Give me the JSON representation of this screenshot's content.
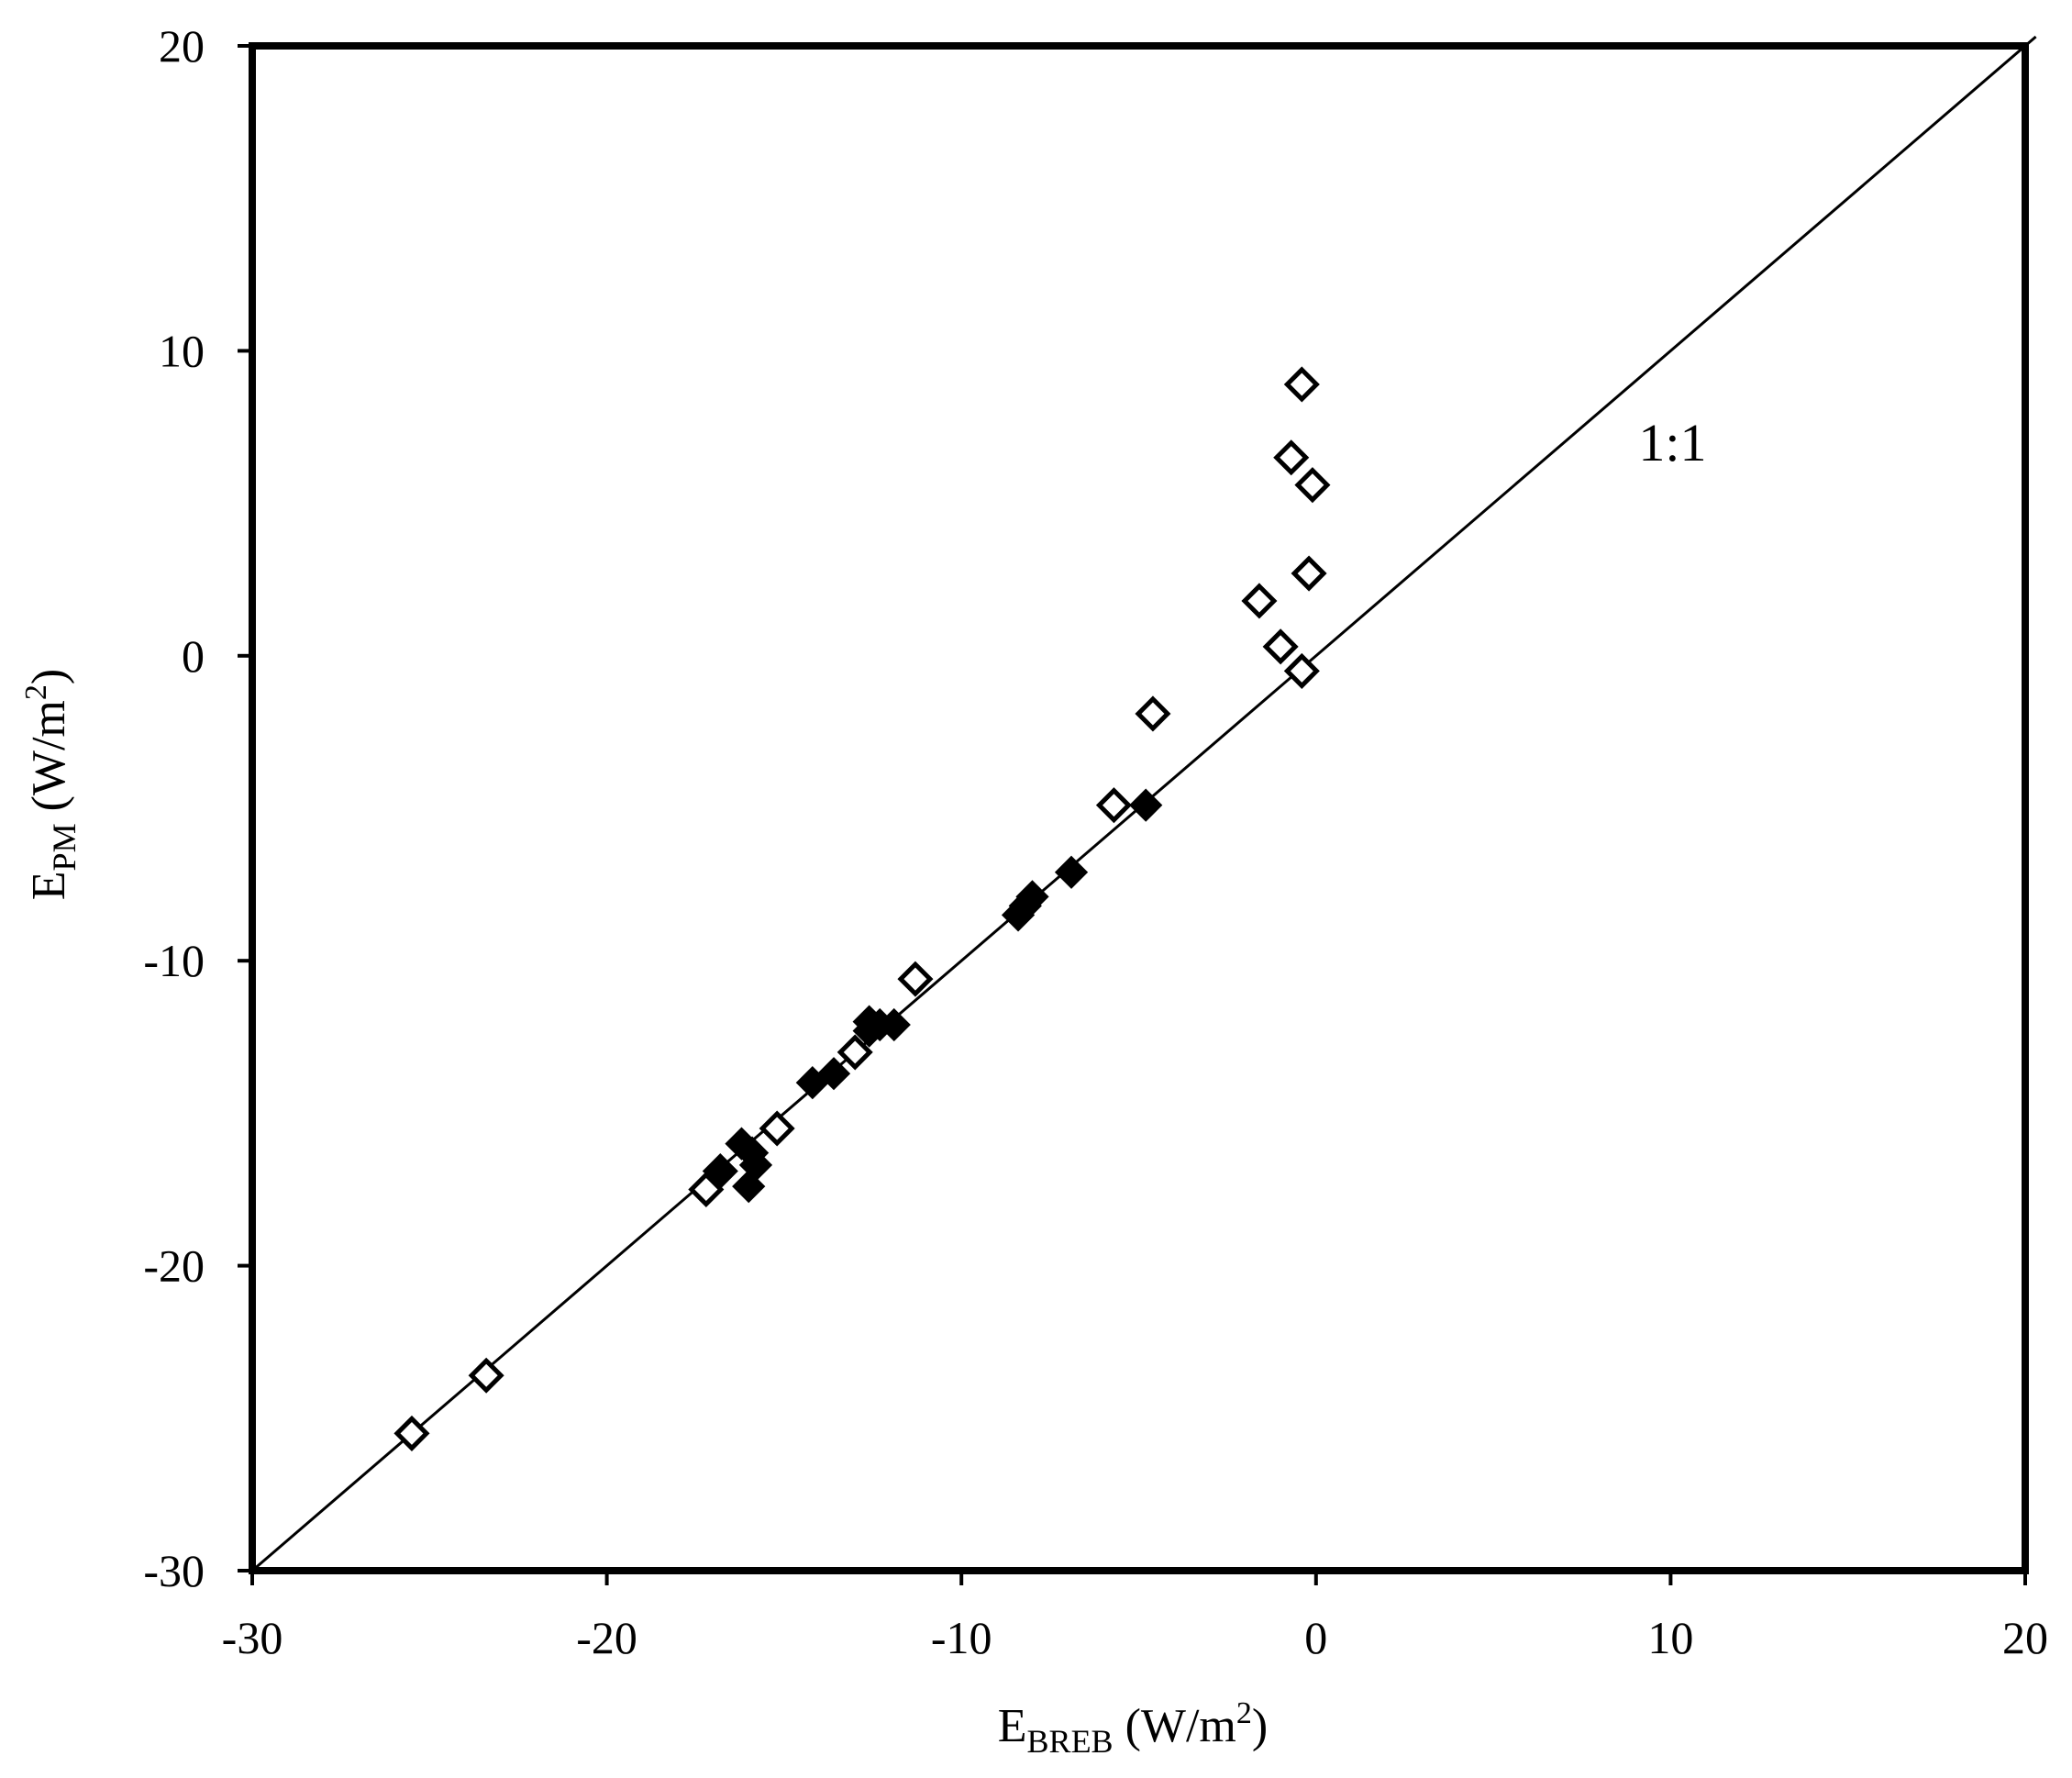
{
  "chart_data": {
    "type": "scatter",
    "xlim": [
      -30,
      20
    ],
    "ylim": [
      -30,
      20
    ],
    "x_ticks": [
      "-30",
      "-20",
      "-10",
      "0",
      "10",
      "20"
    ],
    "y_ticks": [
      "-30",
      "-20",
      "-10",
      "0",
      "10",
      "20"
    ],
    "xlabel": {
      "main": "E",
      "sub": "BREB",
      "pre_sup": " (W/m",
      "sup": "2",
      "post": ")"
    },
    "ylabel": {
      "main": "E",
      "sub": "PM",
      "pre_sup": " (W/m",
      "sup": "2",
      "post": ")"
    },
    "grid": false,
    "reference_line": {
      "label": "1:1",
      "from": [
        -30,
        -30
      ],
      "to": [
        20,
        20
      ],
      "label_at": [
        10,
        7
      ]
    },
    "series": [
      {
        "marker": "open-diamond",
        "points": [
          [
            -25.5,
            -25.5
          ],
          [
            -23.4,
            -23.6
          ],
          [
            -17.2,
            -17.5
          ],
          [
            -16.8,
            -16.9
          ],
          [
            -15.2,
            -15.5
          ],
          [
            -13.0,
            -13.0
          ],
          [
            -11.3,
            -10.6
          ],
          [
            -5.7,
            -4.9
          ],
          [
            -4.6,
            -1.9
          ],
          [
            -1.6,
            1.8
          ],
          [
            -1.0,
            0.3
          ],
          [
            -0.4,
            -0.5
          ],
          [
            -0.7,
            6.5
          ],
          [
            -0.4,
            8.9
          ],
          [
            -0.1,
            5.6
          ],
          [
            -0.2,
            2.7
          ]
        ]
      },
      {
        "marker": "filled-diamond",
        "points": [
          [
            -16.8,
            -16.9
          ],
          [
            -16.2,
            -16.0
          ],
          [
            -16.0,
            -17.4
          ],
          [
            -15.8,
            -16.7
          ],
          [
            -15.9,
            -16.3
          ],
          [
            -14.2,
            -14.0
          ],
          [
            -13.6,
            -13.7
          ],
          [
            -12.6,
            -12.3
          ],
          [
            -12.6,
            -12.0
          ],
          [
            -12.3,
            -12.1
          ],
          [
            -11.9,
            -12.1
          ],
          [
            -8.4,
            -8.5
          ],
          [
            -8.2,
            -8.2
          ],
          [
            -8.0,
            -7.9
          ],
          [
            -6.9,
            -7.1
          ],
          [
            -4.8,
            -4.9
          ]
        ]
      }
    ]
  }
}
